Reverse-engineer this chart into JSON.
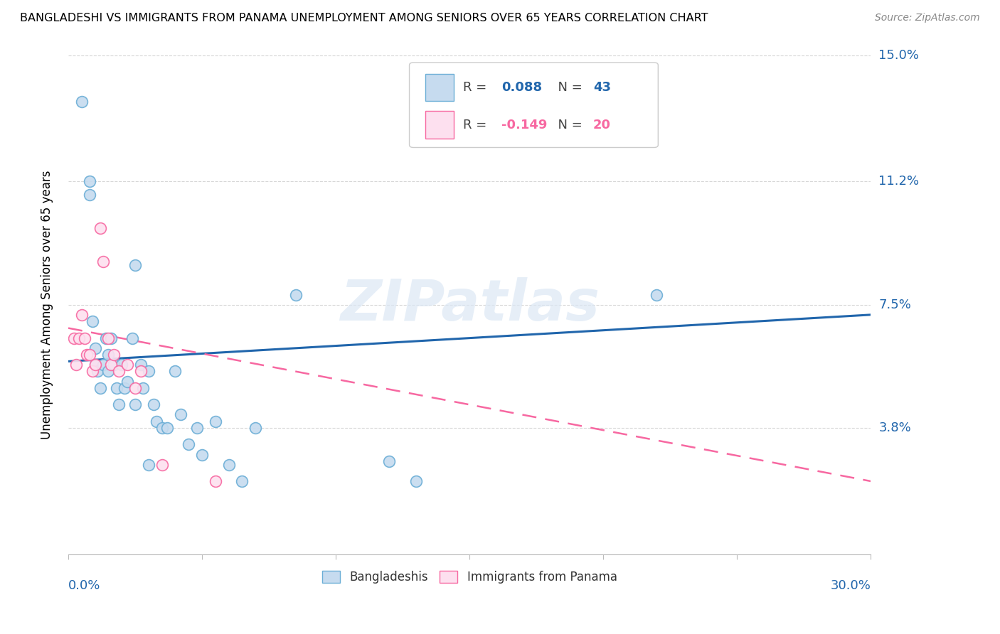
{
  "title": "BANGLADESHI VS IMMIGRANTS FROM PANAMA UNEMPLOYMENT AMONG SENIORS OVER 65 YEARS CORRELATION CHART",
  "source": "Source: ZipAtlas.com",
  "ylabel": "Unemployment Among Seniors over 65 years",
  "ylim": [
    0,
    0.15
  ],
  "xlim": [
    0,
    0.3
  ],
  "watermark": "ZIPatlas",
  "blue_fill": "#c6dbef",
  "blue_edge": "#6baed6",
  "pink_fill": "#fde0ef",
  "pink_edge": "#f768a1",
  "line_blue": "#2166ac",
  "line_pink": "#f768a1",
  "bangladeshi_x": [
    0.005,
    0.008,
    0.008,
    0.009,
    0.01,
    0.01,
    0.011,
    0.012,
    0.013,
    0.014,
    0.015,
    0.015,
    0.016,
    0.017,
    0.018,
    0.019,
    0.02,
    0.021,
    0.022,
    0.024,
    0.025,
    0.027,
    0.028,
    0.03,
    0.032,
    0.033,
    0.035,
    0.037,
    0.04,
    0.042,
    0.045,
    0.048,
    0.05,
    0.055,
    0.06,
    0.065,
    0.07,
    0.12,
    0.13,
    0.22,
    0.025,
    0.03,
    0.085
  ],
  "bangladeshi_y": [
    0.136,
    0.112,
    0.108,
    0.07,
    0.062,
    0.057,
    0.055,
    0.05,
    0.057,
    0.065,
    0.06,
    0.055,
    0.065,
    0.057,
    0.05,
    0.045,
    0.057,
    0.05,
    0.052,
    0.065,
    0.045,
    0.057,
    0.05,
    0.055,
    0.045,
    0.04,
    0.038,
    0.038,
    0.055,
    0.042,
    0.033,
    0.038,
    0.03,
    0.04,
    0.027,
    0.022,
    0.038,
    0.028,
    0.022,
    0.078,
    0.087,
    0.027,
    0.078
  ],
  "panama_x": [
    0.002,
    0.003,
    0.004,
    0.005,
    0.006,
    0.007,
    0.008,
    0.009,
    0.01,
    0.012,
    0.013,
    0.015,
    0.016,
    0.017,
    0.019,
    0.022,
    0.025,
    0.027,
    0.035,
    0.055
  ],
  "panama_y": [
    0.065,
    0.057,
    0.065,
    0.072,
    0.065,
    0.06,
    0.06,
    0.055,
    0.057,
    0.098,
    0.088,
    0.065,
    0.057,
    0.06,
    0.055,
    0.057,
    0.05,
    0.055,
    0.027,
    0.022
  ],
  "blue_trend_x": [
    0.0,
    0.3
  ],
  "blue_trend_y": [
    0.058,
    0.072
  ],
  "pink_trend_x": [
    0.0,
    0.3
  ],
  "pink_trend_y": [
    0.068,
    0.022
  ]
}
